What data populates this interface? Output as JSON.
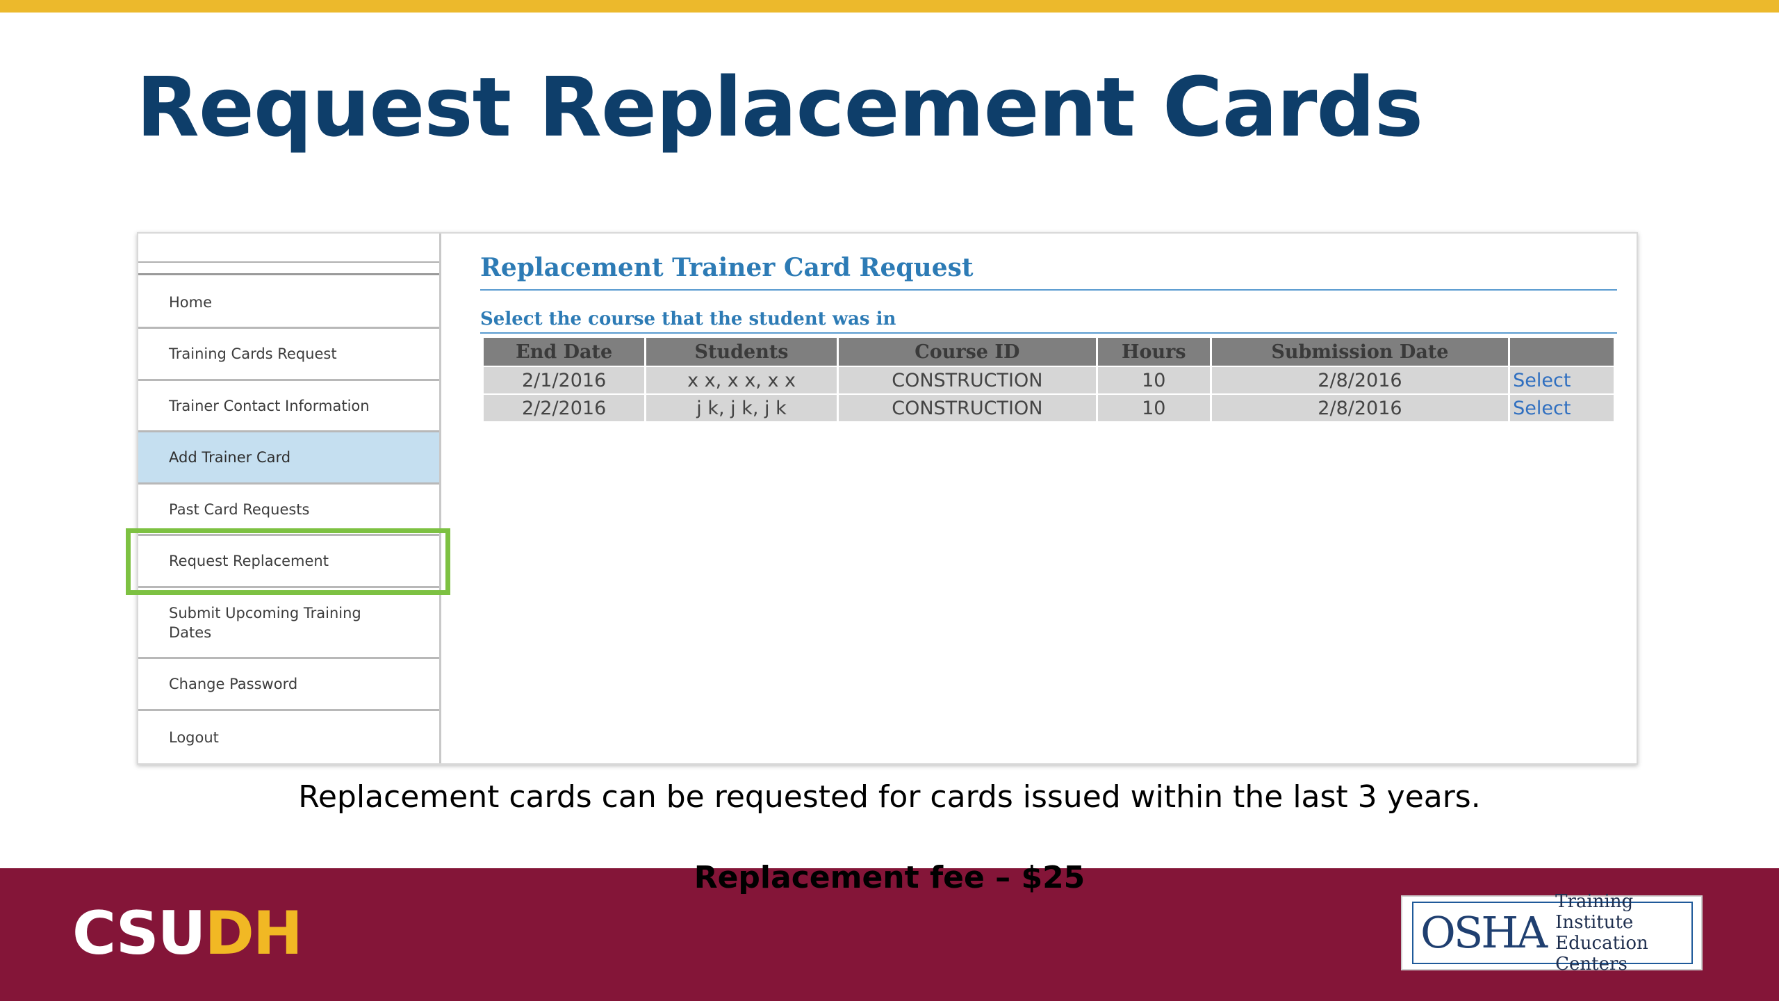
{
  "slide": {
    "title": "Request Replacement Cards",
    "caption": "Replacement cards can be requested for cards issued within the last 3 years.",
    "fee": "Replacement fee – $25"
  },
  "sidebar": {
    "items": [
      {
        "label": "Home"
      },
      {
        "label": "Training Cards Request"
      },
      {
        "label": "Trainer Contact Information"
      },
      {
        "label": "Add Trainer Card",
        "active": true
      },
      {
        "label": "Past Card Requests"
      },
      {
        "label": "Request Replacement",
        "highlighted": true
      },
      {
        "label": "Submit Upcoming Training Dates"
      },
      {
        "label": "Change Password"
      },
      {
        "label": "Logout"
      }
    ]
  },
  "content": {
    "title": "Replacement Trainer Card Request",
    "subtitle": "Select the course that the student was in",
    "table": {
      "headers": [
        "End Date",
        "Students",
        "Course ID",
        "Hours",
        "Submission Date",
        ""
      ],
      "rows": [
        {
          "end_date": "2/1/2016",
          "students": "x x, x x, x x",
          "course_id": "CONSTRUCTION",
          "hours": "10",
          "submission_date": "2/8/2016",
          "action": "Select"
        },
        {
          "end_date": "2/2/2016",
          "students": "j k, j k, j k",
          "course_id": "CONSTRUCTION",
          "hours": "10",
          "submission_date": "2/8/2016",
          "action": "Select"
        }
      ]
    }
  },
  "logos": {
    "csudh_cs": "CSU",
    "csudh_dh": "DH",
    "osha_mark": "OSHA",
    "osha_line1": "Training Institute",
    "osha_line2": "Education Centers"
  },
  "colors": {
    "title_blue": "#0e3e6a",
    "link_blue": "#2d7bb5",
    "top_bar_gold": "#ecb92c",
    "band_maroon": "#841538",
    "highlight_green": "#7dc142",
    "active_nav_blue": "#c5dff0"
  }
}
